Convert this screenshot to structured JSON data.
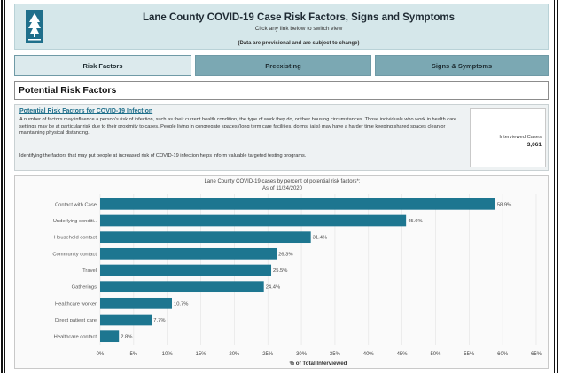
{
  "header": {
    "title": "Lane County COVID-19 Case Risk Factors, Signs and Symptoms",
    "subtitle": "Click any link below to switch view",
    "note": "(Data are provisional and are subject to change)",
    "logo_icon": "tree-logo"
  },
  "tabs": [
    {
      "label": "Risk Factors",
      "active": true
    },
    {
      "label": "Preexisting",
      "active": false
    },
    {
      "label": "Signs & Symptoms",
      "active": false
    }
  ],
  "section": {
    "title": "Potential Risk Factors"
  },
  "info": {
    "title": "Potential Risk Factors for COVID-19 Infection",
    "paragraph1": "A number of factors may influence a person's risk of infection, such as their current health condition, the type of work they do, or their housing circumstances. Those individuals who work in health care settings may be at particular risk due to their proximity to cases. People living in congregate spaces (long term care facilities, dorms, jails) may have a harder time keeping shared spaces clean or maintaining physical distancing.",
    "paragraph2": "Identifying the factors that may put people at increased risk of COVID-19 infection helps inform valuable targeted testing programs.",
    "kpi_label": "Interviewed Cases",
    "kpi_value": "3,061"
  },
  "colors": {
    "bar": "#1d7690",
    "header_bg": "#d5e7ea",
    "tab_inactive": "#7ba8b3"
  },
  "chart_data": {
    "type": "bar",
    "orientation": "horizontal",
    "title": "Lane County COVID-19 cases by percent of potential risk factors*:",
    "subtitle": "As of 11/24/2020",
    "xlabel": "% of Total Interviewed",
    "categories": [
      "Contact with Case",
      "Underlying conditi..",
      "Household contact",
      "Community contact",
      "Travel",
      "Gatherings",
      "Healthcare worker",
      "Direct patient care",
      "Healthcare contact"
    ],
    "values": [
      58.9,
      45.6,
      31.4,
      26.3,
      25.5,
      24.4,
      10.7,
      7.7,
      2.8
    ],
    "value_labels": [
      "58.9%",
      "45.6%",
      "31.4%",
      "26.3%",
      "25.5%",
      "24.4%",
      "10.7%",
      "7.7%",
      "2.8%"
    ],
    "xlim": [
      0,
      65
    ],
    "xticks": [
      "0%",
      "5%",
      "10%",
      "15%",
      "20%",
      "25%",
      "30%",
      "35%",
      "40%",
      "45%",
      "50%",
      "55%",
      "60%",
      "65%"
    ],
    "grid": true
  }
}
